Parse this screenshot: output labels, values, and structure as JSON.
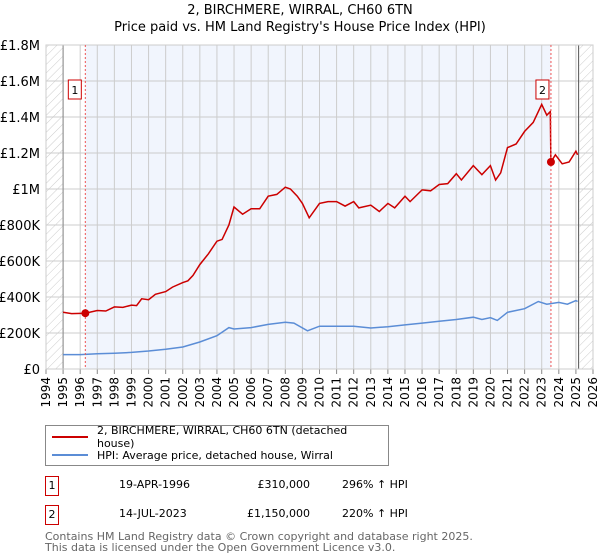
{
  "title": "2, BIRCHMERE, WIRRAL, CH60 6TN",
  "subtitle": "Price paid vs. HM Land Registry's House Price Index (HPI)",
  "chart_data": {
    "type": "line",
    "title": "2, BIRCHMERE, WIRRAL, CH60 6TN",
    "subtitle": "Price paid vs. HM Land Registry's House Price Index (HPI)",
    "xlim": [
      1994,
      2026
    ],
    "ylim": [
      0,
      1800000
    ],
    "x_ticks": [
      "1994",
      "1995",
      "1996",
      "1997",
      "1998",
      "1999",
      "2000",
      "2001",
      "2002",
      "2003",
      "2004",
      "2005",
      "2006",
      "2007",
      "2008",
      "2009",
      "2010",
      "2011",
      "2012",
      "2013",
      "2014",
      "2015",
      "2016",
      "2017",
      "2018",
      "2019",
      "2020",
      "2021",
      "2022",
      "2023",
      "2024",
      "2025",
      "2026"
    ],
    "y_ticks": [
      {
        "v": 0,
        "label": "£0"
      },
      {
        "v": 200000,
        "label": "£200K"
      },
      {
        "v": 400000,
        "label": "£400K"
      },
      {
        "v": 600000,
        "label": "£600K"
      },
      {
        "v": 800000,
        "label": "£800K"
      },
      {
        "v": 1000000,
        "label": "£1M"
      },
      {
        "v": 1200000,
        "label": "£1.2M"
      },
      {
        "v": 1400000,
        "label": "£1.4M"
      },
      {
        "v": 1600000,
        "label": "£1.6M"
      },
      {
        "v": 1800000,
        "label": "£1.8M"
      }
    ],
    "data_range": [
      1995,
      2025.1
    ],
    "grid": true,
    "series": [
      {
        "name": "2, BIRCHMERE, WIRRAL, CH60 6TN (detached house)",
        "color": "#cc0000",
        "x": [
          1995,
          1995.5,
          1996.3,
          1997,
          1997.5,
          1998,
          1998.5,
          1999,
          1999.3,
          1999.6,
          2000,
          2000.4,
          2001,
          2001.4,
          2002,
          2002.3,
          2002.6,
          2003,
          2003.5,
          2004,
          2004.3,
          2004.7,
          2005,
          2005.5,
          2006,
          2006.5,
          2007,
          2007.5,
          2008,
          2008.3,
          2008.7,
          2009,
          2009.4,
          2010,
          2010.5,
          2011,
          2011.5,
          2012,
          2012.3,
          2013,
          2013.5,
          2014,
          2014.4,
          2015,
          2015.3,
          2016,
          2016.5,
          2017,
          2017.5,
          2018,
          2018.3,
          2019,
          2019.5,
          2020,
          2020.3,
          2020.6,
          2021,
          2021.5,
          2022,
          2022.5,
          2023,
          2023.3,
          2023.5,
          2023.54,
          2023.8,
          2024.2,
          2024.6,
          2025,
          2025.1
        ],
        "y": [
          315000,
          308000,
          310000,
          325000,
          322000,
          345000,
          342000,
          355000,
          352000,
          390000,
          385000,
          415000,
          430000,
          455000,
          480000,
          490000,
          520000,
          580000,
          640000,
          710000,
          720000,
          800000,
          900000,
          860000,
          890000,
          890000,
          960000,
          970000,
          1010000,
          1000000,
          960000,
          920000,
          840000,
          920000,
          930000,
          930000,
          905000,
          930000,
          895000,
          910000,
          875000,
          920000,
          895000,
          960000,
          930000,
          995000,
          990000,
          1025000,
          1030000,
          1085000,
          1050000,
          1130000,
          1080000,
          1130000,
          1050000,
          1090000,
          1230000,
          1250000,
          1320000,
          1370000,
          1470000,
          1410000,
          1430000,
          1150000,
          1190000,
          1140000,
          1150000,
          1210000,
          1190000
        ]
      },
      {
        "name": "HPI: Average price, detached house, Wirral",
        "color": "#5b8dd6",
        "x": [
          1995,
          1996,
          1997,
          1998,
          1999,
          2000,
          2001,
          2002,
          2003,
          2004,
          2004.7,
          2005,
          2006,
          2007,
          2008,
          2008.5,
          2009.3,
          2010,
          2011,
          2012,
          2013,
          2014,
          2015,
          2016,
          2017,
          2018,
          2019,
          2019.5,
          2020,
          2020.4,
          2021,
          2022,
          2022.8,
          2023.3,
          2024,
          2024.5,
          2025,
          2025.1
        ],
        "y": [
          80000,
          80000,
          85000,
          88000,
          92000,
          100000,
          110000,
          122000,
          150000,
          185000,
          230000,
          222000,
          230000,
          248000,
          260000,
          255000,
          212000,
          238000,
          237000,
          238000,
          228000,
          235000,
          245000,
          255000,
          265000,
          275000,
          288000,
          275000,
          285000,
          270000,
          315000,
          335000,
          375000,
          360000,
          370000,
          360000,
          380000,
          375000
        ]
      }
    ],
    "annotations": [
      {
        "label": "1",
        "x": 1996.3,
        "y": 310000
      },
      {
        "label": "2",
        "x": 2023.54,
        "y": 1150000
      }
    ],
    "legend": "below"
  },
  "legend": [
    {
      "label": "2, BIRCHMERE, WIRRAL, CH60 6TN (detached house)",
      "color": "#cc0000"
    },
    {
      "label": "HPI: Average price, detached house, Wirral",
      "color": "#5b8dd6"
    }
  ],
  "transactions": [
    {
      "num": "1",
      "date": "19-APR-1996",
      "price": "£310,000",
      "hpi": "296% ↑ HPI"
    },
    {
      "num": "2",
      "date": "14-JUL-2023",
      "price": "£1,150,000",
      "hpi": "220% ↑ HPI"
    }
  ],
  "footer": [
    "Contains HM Land Registry data © Crown copyright and database right 2025.",
    "This data is licensed under the Open Government Licence v3.0."
  ]
}
